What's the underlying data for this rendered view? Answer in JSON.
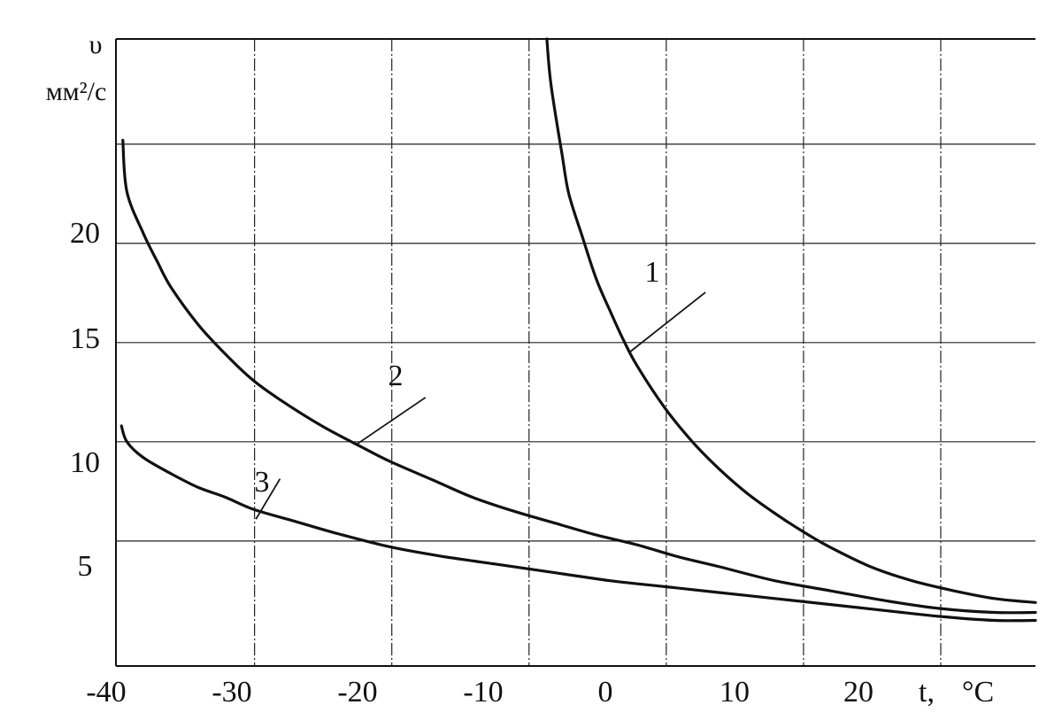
{
  "chart_data": {
    "type": "line",
    "y_symbol": "υ",
    "y_unit": "мм²/с",
    "x_symbol": "t,",
    "x_unit": "°C",
    "xlim": [
      -40,
      27
    ],
    "ylim": [
      -1.3,
      30.3
    ],
    "x_ticks": [
      "-40",
      "-30",
      "-20",
      "-10",
      "0",
      "10",
      "20"
    ],
    "y_ticks": [
      "20",
      "15",
      "10",
      "5"
    ],
    "grid": true,
    "series": [
      {
        "name": "1",
        "x": [
          -8.6,
          -8.3,
          -7.5,
          -7,
          -6,
          -5,
          -4,
          -3,
          -2,
          0,
          2,
          4,
          6,
          8,
          10,
          12,
          15,
          18,
          21,
          24,
          27
        ],
        "y": [
          30.3,
          28,
          24.5,
          22.5,
          20.3,
          18.2,
          16.6,
          15.1,
          13.8,
          11.7,
          10,
          8.6,
          7.4,
          6.4,
          5.5,
          4.7,
          3.7,
          3.0,
          2.5,
          2.1,
          1.9
        ]
      },
      {
        "name": "2",
        "x": [
          -39.5,
          -39.2,
          -38,
          -37,
          -36,
          -34,
          -32,
          -30,
          -28,
          -25,
          -22,
          -20,
          -17,
          -14,
          -11,
          -8,
          -5,
          -2,
          1,
          4,
          8,
          12,
          16,
          20,
          24,
          27
        ],
        "y": [
          25.2,
          22.6,
          20.5,
          19.1,
          17.8,
          15.9,
          14.4,
          13.1,
          12.1,
          10.8,
          9.7,
          9.0,
          8.1,
          7.2,
          6.5,
          5.9,
          5.3,
          4.8,
          4.2,
          3.7,
          3.0,
          2.5,
          2.0,
          1.6,
          1.4,
          1.4
        ]
      },
      {
        "name": "3",
        "x": [
          -39.6,
          -39.2,
          -38,
          -36,
          -34,
          -32,
          -30,
          -27,
          -24,
          -20,
          -16,
          -12,
          -8,
          -4,
          0,
          4,
          8,
          12,
          16,
          20,
          24,
          27
        ],
        "y": [
          10.8,
          10.0,
          9.2,
          8.4,
          7.7,
          7.2,
          6.6,
          6.0,
          5.4,
          4.7,
          4.2,
          3.8,
          3.4,
          3.0,
          2.7,
          2.4,
          2.1,
          1.8,
          1.5,
          1.2,
          1.0,
          1.0
        ]
      }
    ],
    "annotations": [
      {
        "text": "1",
        "x": 3.6,
        "y": 17.8,
        "point": [
          -2.6,
          14.5
        ]
      },
      {
        "text": "2",
        "x": -16.8,
        "y": 12.5,
        "point": [
          -22.4,
          9.9
        ]
      },
      {
        "text": "3",
        "x": -27.4,
        "y": 8.4,
        "point": [
          -29.8,
          6.1
        ]
      }
    ]
  }
}
